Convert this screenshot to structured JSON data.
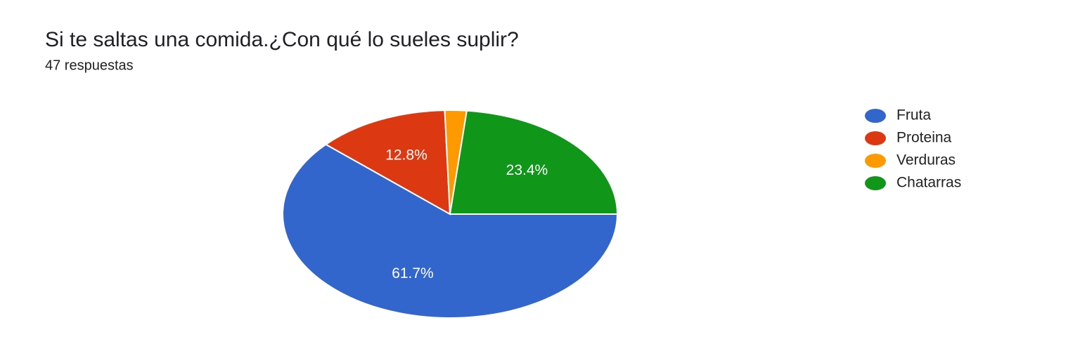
{
  "chart_data": {
    "type": "pie",
    "title": "Si te saltas una comida.¿Con qué lo sueles suplir?",
    "subtitle": "47 respuestas",
    "categories": [
      "Fruta",
      "Proteina",
      "Verduras",
      "Chatarras"
    ],
    "values": [
      61.7,
      12.8,
      2.1,
      23.4
    ],
    "value_labels": [
      "61.7%",
      "12.8%",
      null,
      "23.4%"
    ],
    "colors": [
      "#3366cc",
      "#dc3912",
      "#ff9900",
      "#109618"
    ],
    "legend": "right"
  }
}
